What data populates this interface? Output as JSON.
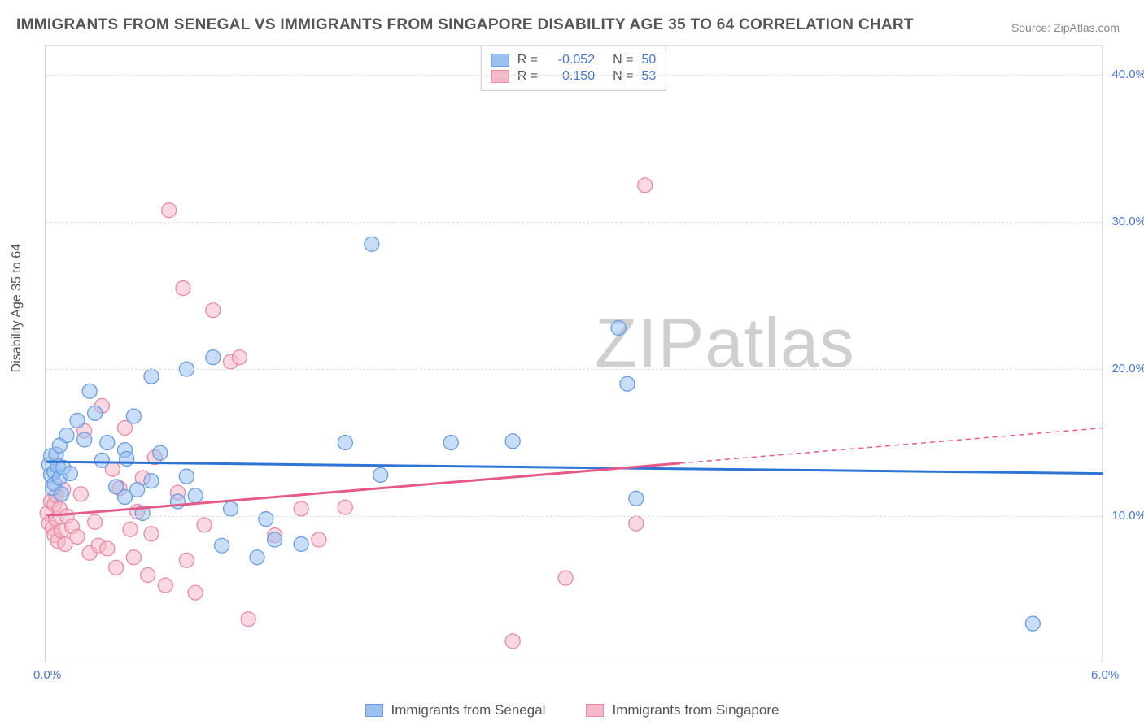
{
  "title": "IMMIGRANTS FROM SENEGAL VS IMMIGRANTS FROM SINGAPORE DISABILITY AGE 35 TO 64 CORRELATION CHART",
  "source": "Source: ZipAtlas.com",
  "yaxis_label": "Disability Age 35 to 64",
  "watermark_part1": "ZIP",
  "watermark_part2": "atlas",
  "chart": {
    "type": "scatter-with-regression",
    "background_color": "#ffffff",
    "grid_color": "#e0e0e0",
    "border_color": "#d0d0d0",
    "xlim": [
      0.0,
      6.0
    ],
    "ylim": [
      0.0,
      42.0
    ],
    "xtick_labels": [
      "0.0%",
      "6.0%"
    ],
    "xtick_positions": [
      0.0,
      6.0
    ],
    "ytick_labels": [
      "10.0%",
      "20.0%",
      "30.0%",
      "40.0%"
    ],
    "ytick_positions": [
      10.0,
      20.0,
      30.0,
      40.0
    ],
    "tick_label_color": "#4a76d4",
    "tick_fontsize": 15,
    "label_fontsize": 16,
    "title_fontsize": 19,
    "title_color": "#555555",
    "marker_radius": 9,
    "marker_opacity": 0.55,
    "line_width": 3,
    "series": [
      {
        "name": "Immigrants from Senegal",
        "fill": "#9bc1f0",
        "stroke": "#6a9de0",
        "line_color": "#2d74d6",
        "r_value": "-0.052",
        "n_value": "50",
        "regression": {
          "y_at_x0": 13.7,
          "y_at_x6": 12.9,
          "dashed_from_x": null
        },
        "points": [
          [
            0.02,
            13.5
          ],
          [
            0.03,
            14.1
          ],
          [
            0.03,
            12.8
          ],
          [
            0.04,
            11.9
          ],
          [
            0.05,
            13.0
          ],
          [
            0.05,
            12.2
          ],
          [
            0.06,
            14.2
          ],
          [
            0.07,
            13.4
          ],
          [
            0.08,
            12.6
          ],
          [
            0.08,
            14.8
          ],
          [
            0.09,
            11.5
          ],
          [
            0.1,
            13.3
          ],
          [
            0.12,
            15.5
          ],
          [
            0.14,
            12.9
          ],
          [
            0.18,
            16.5
          ],
          [
            0.22,
            15.2
          ],
          [
            0.25,
            18.5
          ],
          [
            0.28,
            17.0
          ],
          [
            0.32,
            13.8
          ],
          [
            0.35,
            15.0
          ],
          [
            0.4,
            12.0
          ],
          [
            0.45,
            11.3
          ],
          [
            0.45,
            14.5
          ],
          [
            0.46,
            13.9
          ],
          [
            0.5,
            16.8
          ],
          [
            0.52,
            11.8
          ],
          [
            0.55,
            10.2
          ],
          [
            0.6,
            19.5
          ],
          [
            0.6,
            12.4
          ],
          [
            0.65,
            14.3
          ],
          [
            0.75,
            11.0
          ],
          [
            0.8,
            12.7
          ],
          [
            0.8,
            20.0
          ],
          [
            0.85,
            11.4
          ],
          [
            0.95,
            20.8
          ],
          [
            1.0,
            8.0
          ],
          [
            1.05,
            10.5
          ],
          [
            1.2,
            7.2
          ],
          [
            1.25,
            9.8
          ],
          [
            1.3,
            8.4
          ],
          [
            1.45,
            8.1
          ],
          [
            1.7,
            15.0
          ],
          [
            1.85,
            28.5
          ],
          [
            1.9,
            12.8
          ],
          [
            2.3,
            15.0
          ],
          [
            2.65,
            15.1
          ],
          [
            3.25,
            22.8
          ],
          [
            3.3,
            19.0
          ],
          [
            3.35,
            11.2
          ],
          [
            5.6,
            2.7
          ]
        ]
      },
      {
        "name": "Immigrants from Singapore",
        "fill": "#f5b8c9",
        "stroke": "#e88aa6",
        "line_color": "#e65a8a",
        "r_value": "0.150",
        "n_value": "53",
        "regression": {
          "y_at_x0": 10.0,
          "y_at_x6": 16.0,
          "dashed_from_x": 3.6
        },
        "points": [
          [
            0.01,
            10.2
          ],
          [
            0.02,
            9.5
          ],
          [
            0.03,
            11.0
          ],
          [
            0.04,
            9.2
          ],
          [
            0.05,
            10.8
          ],
          [
            0.05,
            8.7
          ],
          [
            0.06,
            9.8
          ],
          [
            0.06,
            11.4
          ],
          [
            0.07,
            8.3
          ],
          [
            0.08,
            10.5
          ],
          [
            0.09,
            9.0
          ],
          [
            0.1,
            11.8
          ],
          [
            0.11,
            8.1
          ],
          [
            0.12,
            10.0
          ],
          [
            0.15,
            9.3
          ],
          [
            0.18,
            8.6
          ],
          [
            0.2,
            11.5
          ],
          [
            0.22,
            15.8
          ],
          [
            0.25,
            7.5
          ],
          [
            0.28,
            9.6
          ],
          [
            0.3,
            8.0
          ],
          [
            0.32,
            17.5
          ],
          [
            0.35,
            7.8
          ],
          [
            0.38,
            13.2
          ],
          [
            0.4,
            6.5
          ],
          [
            0.42,
            11.9
          ],
          [
            0.45,
            16.0
          ],
          [
            0.48,
            9.1
          ],
          [
            0.5,
            7.2
          ],
          [
            0.52,
            10.3
          ],
          [
            0.55,
            12.6
          ],
          [
            0.58,
            6.0
          ],
          [
            0.6,
            8.8
          ],
          [
            0.62,
            14.0
          ],
          [
            0.68,
            5.3
          ],
          [
            0.7,
            30.8
          ],
          [
            0.75,
            11.6
          ],
          [
            0.78,
            25.5
          ],
          [
            0.8,
            7.0
          ],
          [
            0.85,
            4.8
          ],
          [
            0.9,
            9.4
          ],
          [
            0.95,
            24.0
          ],
          [
            1.05,
            20.5
          ],
          [
            1.1,
            20.8
          ],
          [
            1.15,
            3.0
          ],
          [
            1.3,
            8.7
          ],
          [
            1.45,
            10.5
          ],
          [
            1.55,
            8.4
          ],
          [
            1.7,
            10.6
          ],
          [
            2.65,
            1.5
          ],
          [
            2.95,
            5.8
          ],
          [
            3.4,
            32.5
          ],
          [
            3.35,
            9.5
          ]
        ]
      }
    ]
  },
  "legend": {
    "r_label": "R =",
    "n_label": "N ="
  },
  "bottom_legend": {
    "items": [
      {
        "label": "Immigrants from Senegal",
        "fill": "#9bc1f0",
        "stroke": "#6a9de0"
      },
      {
        "label": "Immigrants from Singapore",
        "fill": "#f5b8c9",
        "stroke": "#e88aa6"
      }
    ]
  }
}
